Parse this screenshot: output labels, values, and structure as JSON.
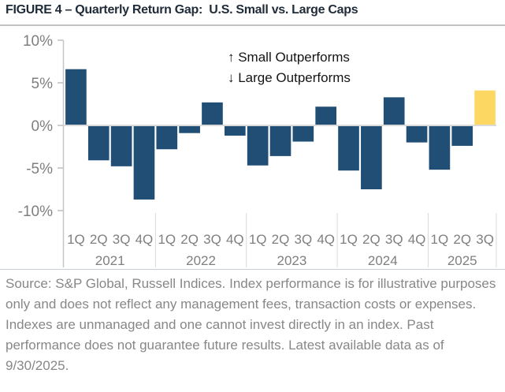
{
  "page": {
    "title": "FIGURE 4 – Quarterly Return Gap:  U.S. Small vs. Large Caps"
  },
  "chart_data": {
    "type": "bar",
    "title": "Quarterly Return Gap: U.S. Small vs. Large Caps",
    "unit": "%",
    "ylim": [
      -10,
      10
    ],
    "grid": false,
    "legend_position": "none",
    "y_ticks": [
      {
        "label": "10%",
        "value": 10
      },
      {
        "label": "5%",
        "value": 5
      },
      {
        "label": "0%",
        "value": 0
      },
      {
        "label": "-5%",
        "value": -5
      },
      {
        "label": "-10%",
        "value": -10
      }
    ],
    "groups": [
      {
        "year": "2021",
        "quarters": [
          "1Q",
          "2Q",
          "3Q",
          "4Q"
        ],
        "values": [
          6.6,
          -4.1,
          -4.8,
          -8.7
        ]
      },
      {
        "year": "2022",
        "quarters": [
          "1Q",
          "2Q",
          "3Q",
          "4Q"
        ],
        "values": [
          -2.8,
          -0.9,
          2.7,
          -1.2
        ]
      },
      {
        "year": "2023",
        "quarters": [
          "1Q",
          "2Q",
          "3Q",
          "4Q"
        ],
        "values": [
          -4.7,
          -3.6,
          -1.9,
          2.2
        ]
      },
      {
        "year": "2024",
        "quarters": [
          "1Q",
          "2Q",
          "3Q",
          "4Q"
        ],
        "values": [
          -5.3,
          -7.5,
          3.3,
          -2.0
        ]
      },
      {
        "year": "2025",
        "quarters": [
          "1Q",
          "2Q",
          "3Q"
        ],
        "values": [
          -5.2,
          -2.4,
          4.1
        ]
      }
    ],
    "highlight_bar": {
      "year": "2025",
      "quarter": "3Q"
    },
    "annotations": [
      {
        "text": "↑ Small Outperforms"
      },
      {
        "text": "↓ Large Outperforms"
      }
    ],
    "colors": {
      "bar": "#204e75",
      "highlight": "#fcd863",
      "axis_label": "#7f7f7f",
      "annotation": "#141414"
    }
  },
  "footer": {
    "text": "Source: S&P Global, Russell Indices. Index performance is for illustrative purposes only and does not reflect any management fees, transaction costs or expenses. Indexes are unmanaged and one cannot invest directly in an index. Past performance does not guarantee future results. Latest available data as of 9/30/2025."
  }
}
